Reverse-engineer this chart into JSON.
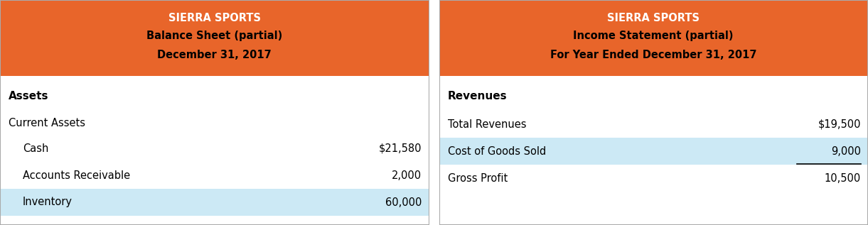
{
  "orange_color": "#E8652A",
  "light_blue_color": "#CCE9F5",
  "white_color": "#FFFFFF",
  "black_color": "#000000",
  "border_color": "#AAAAAA",
  "fig_width": 12.21,
  "fig_height": 3.17,
  "dpi": 100,
  "left_panel": {
    "title_line1": "SIERRA SPORTS",
    "title_line2": "Balance Sheet (partial)",
    "title_line3": "December 31, 2017",
    "section_header": "Assets",
    "sub_header": "Current Assets",
    "rows": [
      {
        "label": "Cash",
        "indent": true,
        "value": "$21,580",
        "highlight": false
      },
      {
        "label": "Accounts Receivable",
        "indent": true,
        "value": "2,000",
        "highlight": false
      },
      {
        "label": "Inventory",
        "indent": true,
        "value": "60,000",
        "highlight": true
      }
    ]
  },
  "right_panel": {
    "title_line1": "SIERRA SPORTS",
    "title_line2": "Income Statement (partial)",
    "title_line3": "For Year Ended December 31, 2017",
    "section_header": "Revenues",
    "sub_header": null,
    "rows": [
      {
        "label": "Total Revenues",
        "indent": false,
        "value": "$19,500",
        "highlight": false,
        "underline_below": false
      },
      {
        "label": "Cost of Goods Sold",
        "indent": false,
        "value": "9,000",
        "highlight": true,
        "underline_below": true
      },
      {
        "label": "Gross Profit",
        "indent": false,
        "value": "10,500",
        "highlight": false,
        "underline_below": false
      }
    ]
  }
}
